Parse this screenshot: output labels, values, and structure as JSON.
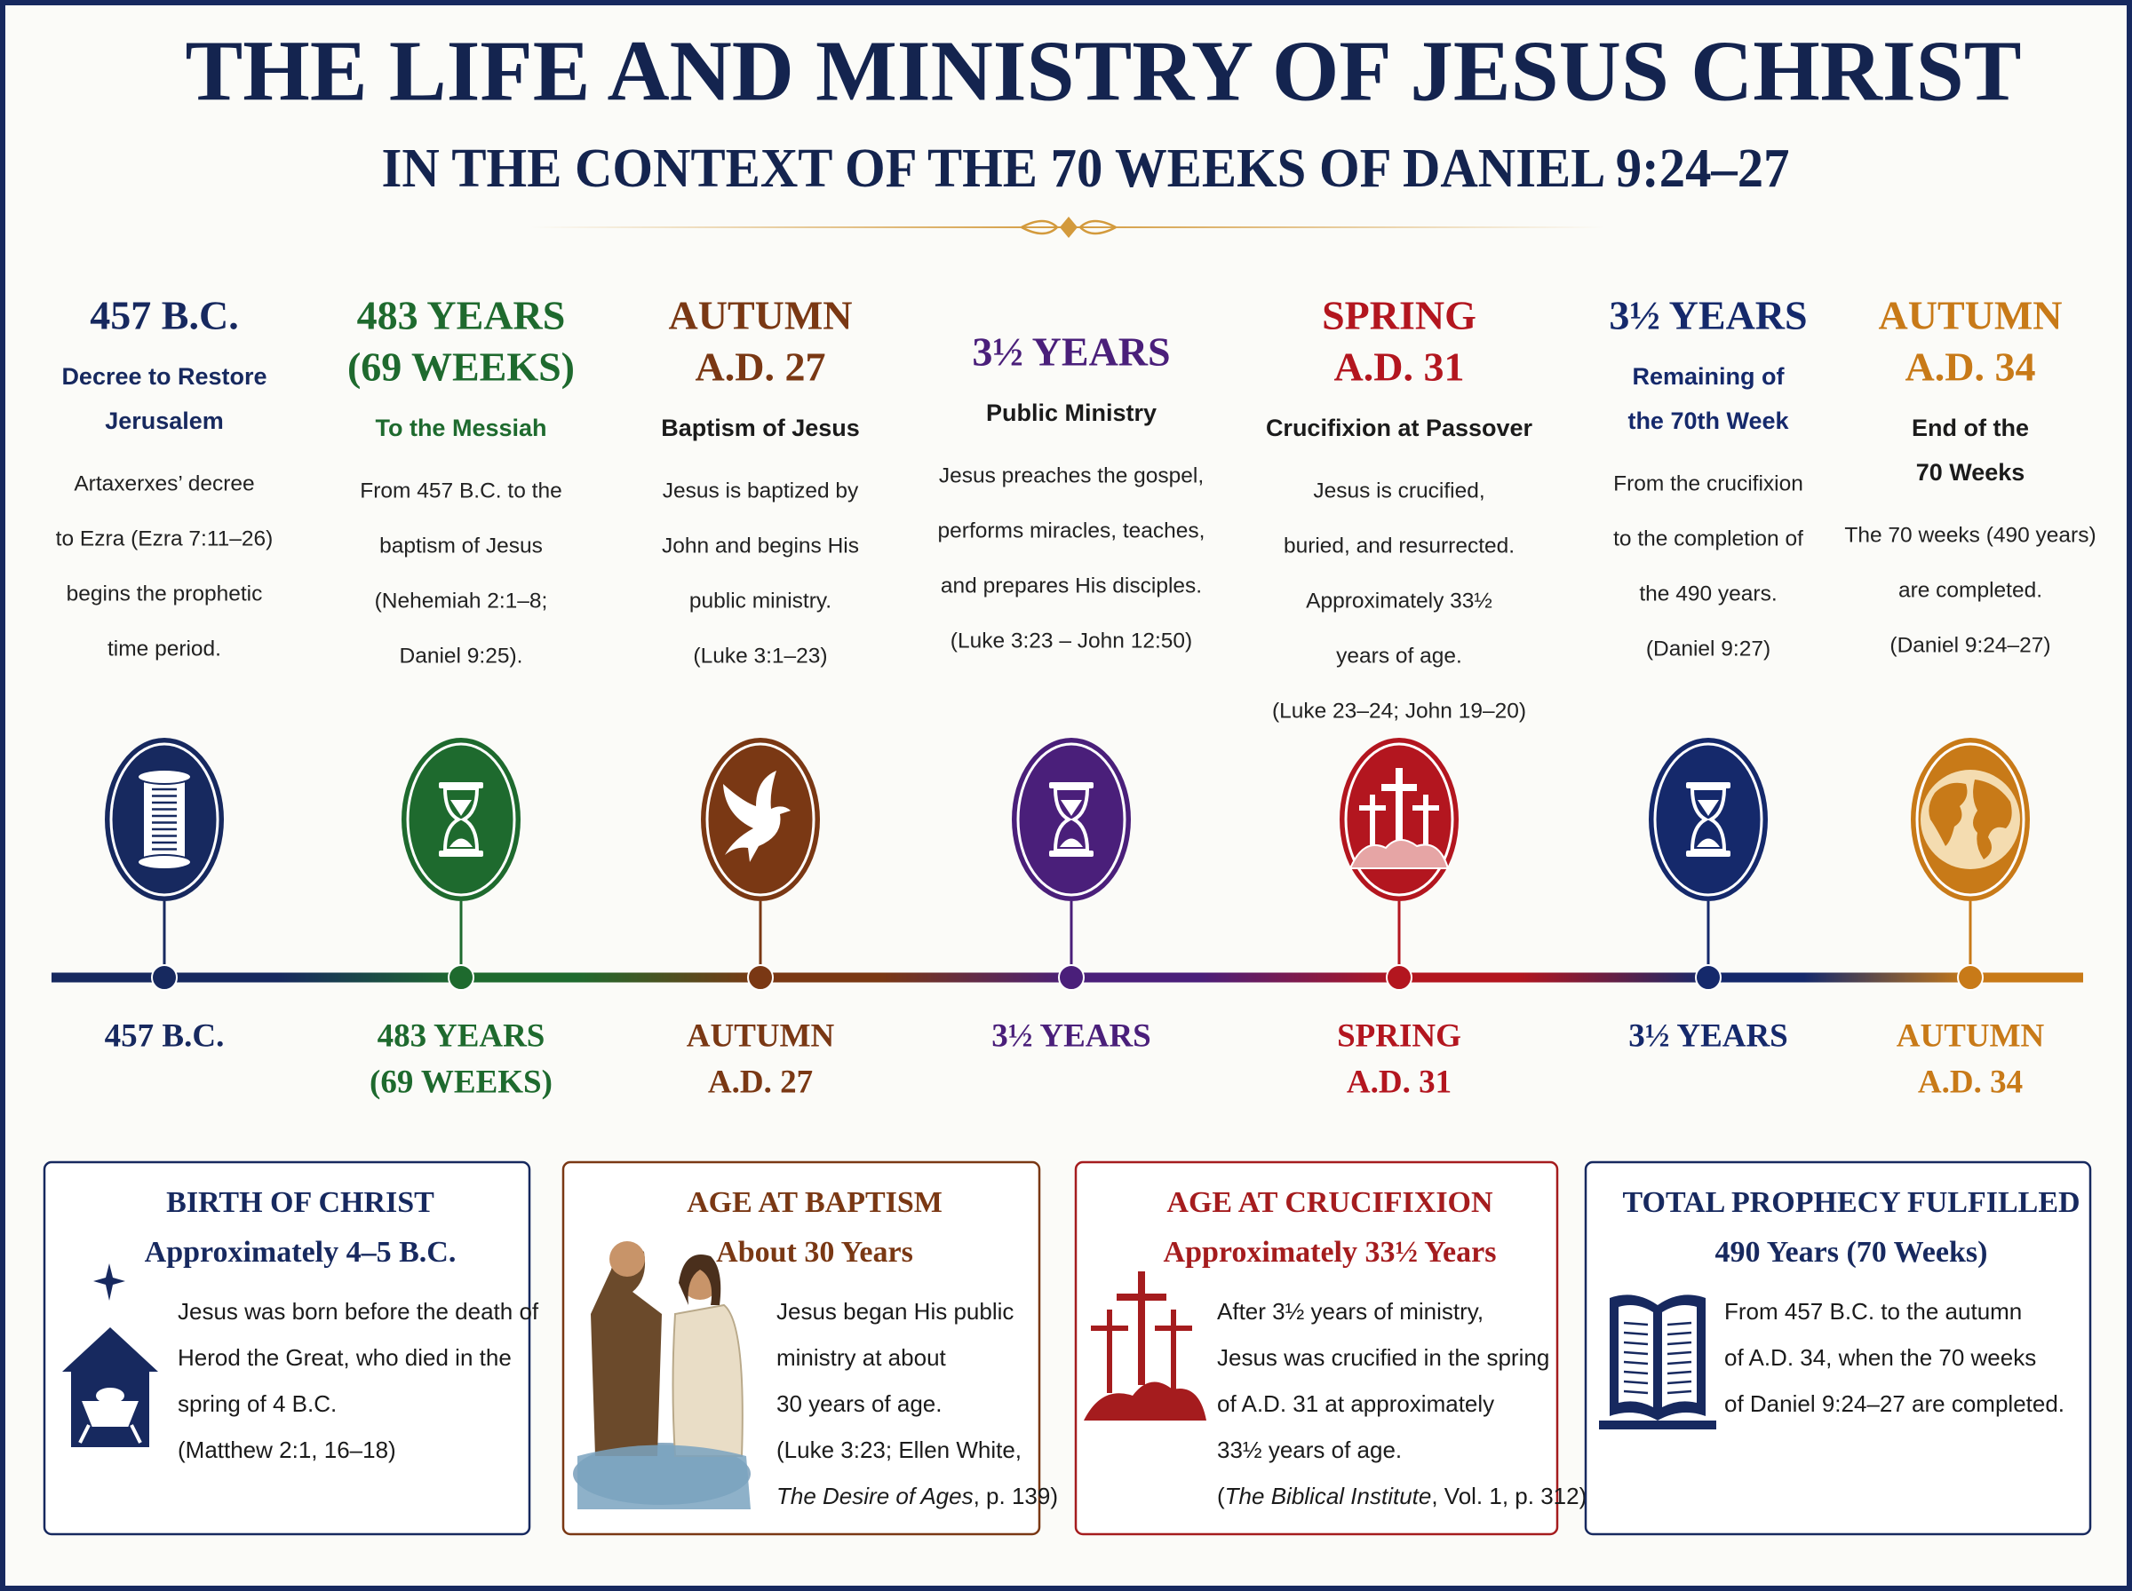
{
  "header": {
    "title": "THE LIFE AND MINISTRY OF JESUS CHRIST",
    "subtitle": "IN THE CONTEXT OF THE 70 WEEKS OF DANIEL 9:24–27"
  },
  "events": [
    {
      "heading": [
        "457 B.C."
      ],
      "subheading": [
        "Decree to Restore",
        "Jerusalem"
      ],
      "subheading_colored": true,
      "description": [
        "Artaxerxes’ decree",
        "to Ezra (Ezra 7:11–26)",
        "begins the prophetic",
        "time period."
      ],
      "label": [
        "457 B.C."
      ],
      "color": "#17295f"
    },
    {
      "heading": [
        "483 YEARS",
        "(69 WEEKS)"
      ],
      "subheading": [
        "To the Messiah"
      ],
      "subheading_colored": true,
      "description": [
        "From 457 B.C. to the",
        "baptism of Jesus",
        "(Nehemiah 2:1–8;",
        "Daniel 9:25)."
      ],
      "label": [
        "483 YEARS",
        "(69 WEEKS)"
      ],
      "color": "#1e6a2e"
    },
    {
      "heading": [
        "AUTUMN",
        "A.D. 27"
      ],
      "subheading": [
        "Baptism of Jesus"
      ],
      "subheading_colored": false,
      "description": [
        "Jesus is baptized by",
        "John and begins His",
        "public ministry.",
        "(Luke 3:1–23)"
      ],
      "label": [
        "AUTUMN",
        "A.D. 27"
      ],
      "color": "#7a3814"
    },
    {
      "heading": [
        "3½ YEARS"
      ],
      "subheading": [
        "Public Ministry"
      ],
      "subheading_colored": false,
      "description": [
        "Jesus preaches the gospel,",
        "performs miracles, teaches,",
        "and prepares His disciples.",
        "(Luke 3:23 – John 12:50)"
      ],
      "label": [
        "3½ YEARS"
      ],
      "color": "#4a1f7a"
    },
    {
      "heading": [
        "SPRING",
        "A.D. 31"
      ],
      "subheading": [
        "Crucifixion at Passover"
      ],
      "subheading_colored": false,
      "description": [
        "Jesus is crucified,",
        "buried, and resurrected.",
        "Approximately 33½",
        "years of age.",
        "(Luke 23–24; John 19–20)"
      ],
      "label": [
        "SPRING",
        "A.D. 31"
      ],
      "color": "#b3161f"
    },
    {
      "heading": [
        "3½ YEARS"
      ],
      "subheading": [
        "Remaining of",
        "the 70th Week"
      ],
      "subheading_colored": true,
      "description": [
        "From the crucifixion",
        "to the completion of",
        "the 490 years.",
        "(Daniel 9:27)"
      ],
      "label": [
        "3½ YEARS"
      ],
      "color": "#15296b"
    },
    {
      "heading": [
        "AUTUMN",
        "A.D. 34"
      ],
      "subheading": [
        "End of the",
        "70 Weeks"
      ],
      "subheading_colored": false,
      "description": [
        "The 70 weeks (490 years)",
        "are completed.",
        "(Daniel 9:24–27)"
      ],
      "label": [
        "AUTUMN",
        "A.D. 34"
      ],
      "color": "#c87a18"
    }
  ],
  "boxes": [
    {
      "title": "BIRTH OF CHRIST",
      "subtitle": "Approximately 4–5 B.C.",
      "lines": [
        "Jesus was born before the death of",
        "Herod the Great, who died in the",
        "spring of 4 B.C.",
        "(Matthew 2:1, 16–18)"
      ],
      "color": "#17295f"
    },
    {
      "title": "AGE AT BAPTISM",
      "subtitle": "About 30 Years",
      "lines": [
        "Jesus began His public",
        "ministry at about",
        "30 years of age.",
        "(Luke 3:23; Ellen White,",
        [
          {
            "text": "The Desire of Ages",
            "italic": true
          },
          {
            "text": ", p. 139)"
          }
        ]
      ],
      "color": "#7a3814"
    },
    {
      "title": "AGE AT CRUCIFIXION",
      "subtitle": "Approximately 33½ Years",
      "lines": [
        "After 3½ years of ministry,",
        "Jesus was crucified in the spring",
        "of A.D. 31 at approximately",
        "33½ years of age.",
        [
          {
            "text": "("
          },
          {
            "text": "The Biblical Institute",
            "italic": true
          },
          {
            "text": ", Vol. 1, p. 312)"
          }
        ]
      ],
      "color": "#a51c1e"
    },
    {
      "title": "TOTAL PROPHECY FULFILLED",
      "subtitle": "490 Years (70 Weeks)",
      "lines": [
        "From 457 B.C. to the autumn",
        "of A.D. 34, when the 70 weeks",
        "of Daniel 9:24–27 are completed."
      ],
      "color": "#17295f"
    }
  ]
}
